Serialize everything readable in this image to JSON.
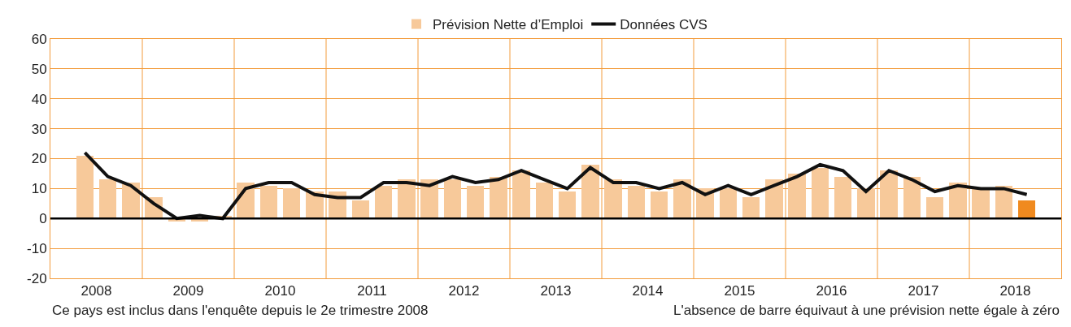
{
  "chart_data": {
    "type": "bar",
    "x": [
      2008.375,
      2008.625,
      2008.875,
      2009.125,
      2009.375,
      2009.625,
      2009.875,
      2010.125,
      2010.375,
      2010.625,
      2010.875,
      2011.125,
      2011.375,
      2011.625,
      2011.875,
      2012.125,
      2012.375,
      2012.625,
      2012.875,
      2013.125,
      2013.375,
      2013.625,
      2013.875,
      2014.125,
      2014.375,
      2014.625,
      2014.875,
      2015.125,
      2015.375,
      2015.625,
      2015.875,
      2016.125,
      2016.375,
      2016.625,
      2016.875,
      2017.125,
      2017.375,
      2017.625,
      2017.875,
      2018.125,
      2018.375,
      2018.625
    ],
    "series": [
      {
        "name": "Prévision Nette d’Emploi",
        "colors": [
          "#f7c99a",
          "#f7c99a",
          "#f7c99a",
          "#f7c99a",
          "#f7c99a",
          "#f7c99a",
          "#f7c99a",
          "#f7c99a",
          "#f7c99a",
          "#f7c99a",
          "#f7c99a",
          "#f7c99a",
          "#f7c99a",
          "#f7c99a",
          "#f7c99a",
          "#f7c99a",
          "#f7c99a",
          "#f7c99a",
          "#f7c99a",
          "#f7c99a",
          "#f7c99a",
          "#f7c99a",
          "#f7c99a",
          "#f7c99a",
          "#f7c99a",
          "#f7c99a",
          "#f7c99a",
          "#f7c99a",
          "#f7c99a",
          "#f7c99a",
          "#f7c99a",
          "#f7c99a",
          "#f7c99a",
          "#f7c99a",
          "#f7c99a",
          "#f7c99a",
          "#f7c99a",
          "#f7c99a",
          "#f7c99a",
          "#f7c99a",
          "#f7c99a",
          "#f08a1f"
        ],
        "values": [
          21,
          13,
          12,
          7,
          -1,
          -1,
          1,
          12,
          11,
          10,
          9,
          9,
          6,
          11,
          13,
          13,
          13,
          11,
          14,
          16,
          12,
          9,
          18,
          13,
          11,
          9,
          13,
          10,
          10,
          7,
          13,
          15,
          17,
          14,
          10,
          16,
          14,
          7,
          12,
          10,
          11,
          6
        ]
      },
      {
        "name": "Données CVS",
        "type": "line",
        "color": "#111111",
        "values": [
          22,
          14,
          11,
          5,
          0,
          1,
          0,
          10,
          12,
          12,
          8,
          7,
          7,
          12,
          12,
          11,
          14,
          12,
          13,
          16,
          13,
          10,
          17,
          12,
          12,
          10,
          12,
          8,
          11,
          8,
          11,
          14,
          18,
          16,
          9,
          16,
          13,
          9,
          11,
          10,
          10,
          8
        ]
      }
    ],
    "xlim": [
      2008,
      2019
    ],
    "xticks": [
      {
        "value": 2008.5,
        "label": "2008"
      },
      {
        "value": 2009,
        "label": null
      },
      {
        "value": 2009.5,
        "label": "2009"
      },
      {
        "value": 2010,
        "label": null
      },
      {
        "value": 2010.5,
        "label": "2010"
      },
      {
        "value": 2011,
        "label": null
      },
      {
        "value": 2011.5,
        "label": "2011"
      },
      {
        "value": 2012,
        "label": null
      },
      {
        "value": 2012.5,
        "label": "2012"
      },
      {
        "value": 2013,
        "label": null
      },
      {
        "value": 2013.5,
        "label": "2013"
      },
      {
        "value": 2014,
        "label": null
      },
      {
        "value": 2014.5,
        "label": "2014"
      },
      {
        "value": 2015,
        "label": null
      },
      {
        "value": 2015.5,
        "label": "2015"
      },
      {
        "value": 2016,
        "label": null
      },
      {
        "value": 2016.5,
        "label": "2016"
      },
      {
        "value": 2017,
        "label": null
      },
      {
        "value": 2017.5,
        "label": "2017"
      },
      {
        "value": 2018,
        "label": null
      },
      {
        "value": 2018.5,
        "label": "2018"
      }
    ],
    "ylim": [
      -20,
      60
    ],
    "yticks": [
      -20,
      -10,
      0,
      10,
      20,
      30,
      40,
      50,
      60
    ],
    "grid": true,
    "legend": "top",
    "ref_lines": [
      {
        "axis": "y",
        "value": 0,
        "color": "#000000"
      }
    ],
    "annotations": [
      "Ce pays est inclus dans l'enquête depuis le 2e trimestre 2008",
      "L'absence de barre équivaut à une prévision nette égale à zéro"
    ]
  }
}
